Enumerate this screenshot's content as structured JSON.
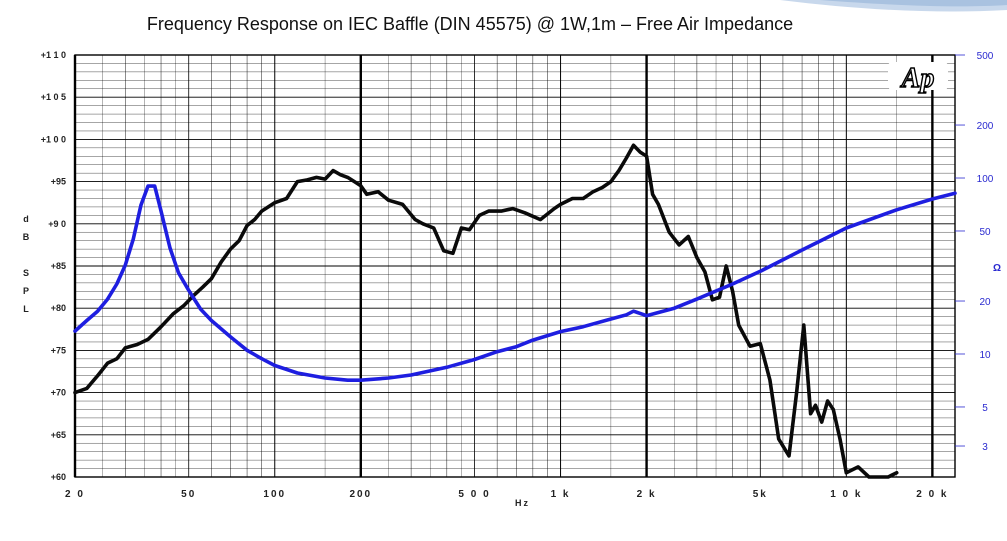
{
  "chart_data": {
    "type": "line",
    "title": "Frequency Response on IEC Baffle (DIN 45575)  @ 1W,1m – Free Air Impedance",
    "logo": "Ap",
    "xlabel": "Hz",
    "ylabel_left": [
      "d",
      "B",
      "",
      "S",
      "P",
      "L"
    ],
    "ylabel_right": "Ω",
    "x_scale": "log",
    "xlim": [
      20,
      24000
    ],
    "ylim_left": [
      60,
      110
    ],
    "ylim_right_log": [
      2,
      500
    ],
    "grid": true,
    "x_ticks": [
      {
        "label": "2 0",
        "value": 20
      },
      {
        "label": "50",
        "value": 50
      },
      {
        "label": "100",
        "value": 100
      },
      {
        "label": "200",
        "value": 200
      },
      {
        "label": "5 0 0",
        "value": 500
      },
      {
        "label": "1 k",
        "value": 1000
      },
      {
        "label": "2 k",
        "value": 2000
      },
      {
        "label": "5k",
        "value": 5000
      },
      {
        "label": "1 0 k",
        "value": 10000
      },
      {
        "label": "2 0 k",
        "value": 20000
      }
    ],
    "y_left_ticks": [
      {
        "label": "+1 1 0",
        "value": 110
      },
      {
        "label": "+1 0 5",
        "value": 105
      },
      {
        "label": "+1 0 0",
        "value": 100
      },
      {
        "label": "+95",
        "value": 95
      },
      {
        "label": "+9 0",
        "value": 90
      },
      {
        "label": "+85",
        "value": 85
      },
      {
        "label": "+80",
        "value": 80
      },
      {
        "label": "+75",
        "value": 75
      },
      {
        "label": "+70",
        "value": 70
      },
      {
        "label": "+65",
        "value": 65
      },
      {
        "label": "+60",
        "value": 60
      }
    ],
    "y_right_ticks": [
      {
        "label": "500",
        "value": 500
      },
      {
        "label": "200",
        "value": 200
      },
      {
        "label": "100",
        "value": 100
      },
      {
        "label": "50",
        "value": 50
      },
      {
        "label": "20",
        "value": 20
      },
      {
        "label": "10",
        "value": 10
      },
      {
        "label": "5",
        "value": 5
      },
      {
        "label": "3",
        "value": 3
      }
    ],
    "series": [
      {
        "color": "#0a0a0a",
        "axis": "left",
        "x": [
          20,
          22,
          24,
          26,
          28,
          30,
          33,
          36,
          40,
          44,
          48,
          52,
          56,
          60,
          65,
          70,
          75,
          80,
          85,
          90,
          100,
          110,
          120,
          130,
          140,
          150,
          160,
          170,
          180,
          190,
          200,
          210,
          230,
          250,
          280,
          310,
          330,
          360,
          390,
          420,
          450,
          480,
          520,
          560,
          620,
          680,
          750,
          850,
          950,
          1000,
          1100,
          1200,
          1300,
          1400,
          1500,
          1600,
          1700,
          1800,
          1900,
          2000,
          2100,
          2200,
          2400,
          2600,
          2800,
          3000,
          3200,
          3400,
          3600,
          3800,
          4000,
          4200,
          4600,
          5000,
          5400,
          5800,
          6300,
          6700,
          7100,
          7500,
          7800,
          8200,
          8600,
          9000,
          9500,
          10000,
          11000,
          12000,
          13000,
          14000,
          15000
        ],
        "y": [
          70,
          70.5,
          72,
          73.5,
          74,
          75.3,
          75.7,
          76.3,
          77.8,
          79.3,
          80.3,
          81.5,
          82.5,
          83.5,
          85.5,
          87,
          88,
          89.8,
          90.5,
          91.5,
          92.5,
          93,
          95,
          95.2,
          95.5,
          95.3,
          96.3,
          95.8,
          95.5,
          95,
          94.5,
          93.5,
          93.8,
          92.8,
          92.3,
          90.5,
          90,
          89.5,
          86.8,
          86.5,
          89.5,
          89.3,
          91,
          91.5,
          91.5,
          91.8,
          91.3,
          90.5,
          91.8,
          92.3,
          93,
          93,
          93.8,
          94.3,
          95,
          96.3,
          97.8,
          99.3,
          98.5,
          98,
          93.5,
          92.3,
          89,
          87.5,
          88.5,
          86,
          84.3,
          81,
          81.3,
          85,
          82,
          78,
          75.5,
          75.8,
          71.5,
          64.5,
          62.5,
          70,
          78,
          67.5,
          68.5,
          66.5,
          69,
          68,
          64.5,
          60.5,
          61.2,
          59.5,
          60,
          60,
          60.5
        ]
      },
      {
        "color": "#1e1ee0",
        "axis": "right",
        "x": [
          20,
          22,
          24,
          26,
          28,
          30,
          32,
          34,
          36,
          38,
          40,
          43,
          46,
          50,
          55,
          60,
          70,
          80,
          90,
          100,
          120,
          150,
          180,
          200,
          250,
          300,
          400,
          500,
          600,
          700,
          800,
          1000,
          1200,
          1500,
          1700,
          1800,
          1900,
          2000,
          2200,
          2500,
          3000,
          4000,
          5000,
          7000,
          10000,
          15000,
          20000,
          24000
        ],
        "y": [
          13.5,
          15.5,
          17.5,
          20.5,
          25,
          32,
          45,
          70,
          90,
          90,
          65,
          40,
          29,
          23,
          18,
          15.5,
          12.5,
          10.5,
          9.4,
          8.6,
          7.8,
          7.3,
          7.1,
          7.1,
          7.3,
          7.6,
          8.4,
          9.3,
          10.3,
          11,
          12,
          13.4,
          14.3,
          15.8,
          16.7,
          17.5,
          17,
          16.5,
          17.2,
          18.2,
          20.5,
          25,
          29.5,
          39,
          52,
          66,
          76,
          82
        ]
      }
    ]
  }
}
